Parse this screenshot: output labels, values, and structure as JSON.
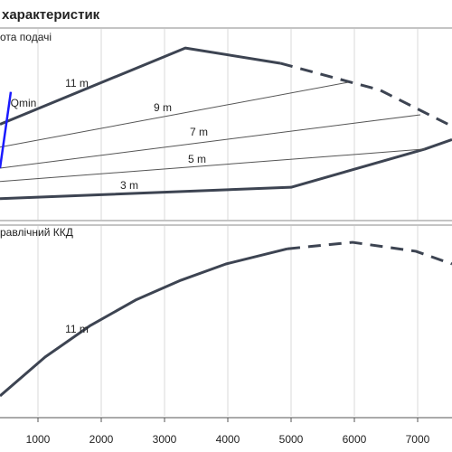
{
  "chart_data": [
    {
      "type": "line",
      "title": "характеристик",
      "label": "ота подачі",
      "xlim": [
        400,
        7543
      ],
      "ylim": [
        0,
        100
      ],
      "grid": true,
      "series": [
        {
          "name": "11 m",
          "color": "#3d4452",
          "style": "solid",
          "x": [
            400,
            3329,
            4829
          ],
          "values": [
            50,
            90,
            82
          ]
        },
        {
          "color": "#3d4452",
          "style": "dashed",
          "x": [
            4829,
            6400,
            7543
          ],
          "values": [
            82,
            68,
            49
          ]
        },
        {
          "name": "3 m",
          "color": "#3d4452",
          "style": "solid",
          "x": [
            400,
            5000,
            7114,
            7543
          ],
          "values": [
            11,
            17,
            37,
            42
          ]
        },
        {
          "name": "9 m",
          "color": "#555555",
          "style": "thin",
          "x": [
            400,
            5900
          ],
          "values": [
            38,
            72
          ]
        },
        {
          "name": "7 m",
          "color": "#555555",
          "style": "thin",
          "x": [
            400,
            7043
          ],
          "values": [
            27,
            55
          ]
        },
        {
          "name": "5 m",
          "color": "#555555",
          "style": "thin",
          "x": [
            400,
            7114
          ],
          "values": [
            20,
            37
          ]
        },
        {
          "name": "Qmin",
          "color": "#1a1aff",
          "style": "blue",
          "x": [
            571,
            400
          ],
          "values": [
            67,
            27
          ]
        }
      ]
    },
    {
      "type": "line",
      "label": "равлічний ККД",
      "xlim": [
        400,
        7543
      ],
      "ylim": [
        0,
        100
      ],
      "grid": true,
      "xticks": [
        1000,
        2000,
        3000,
        4000,
        5000,
        6000,
        7000
      ],
      "series": [
        {
          "name": "11 m",
          "color": "#3d4452",
          "style": "solid",
          "x": [
            400,
            1114,
            1829,
            2543,
            3257,
            3971,
            4943
          ],
          "values": [
            10.5,
            31,
            47.6,
            61,
            71.4,
            80,
            88
          ]
        },
        {
          "color": "#3d4452",
          "style": "dashed",
          "x": [
            4943,
            5971,
            6971,
            7543
          ],
          "values": [
            88,
            91.4,
            86.7,
            80
          ]
        }
      ]
    }
  ]
}
